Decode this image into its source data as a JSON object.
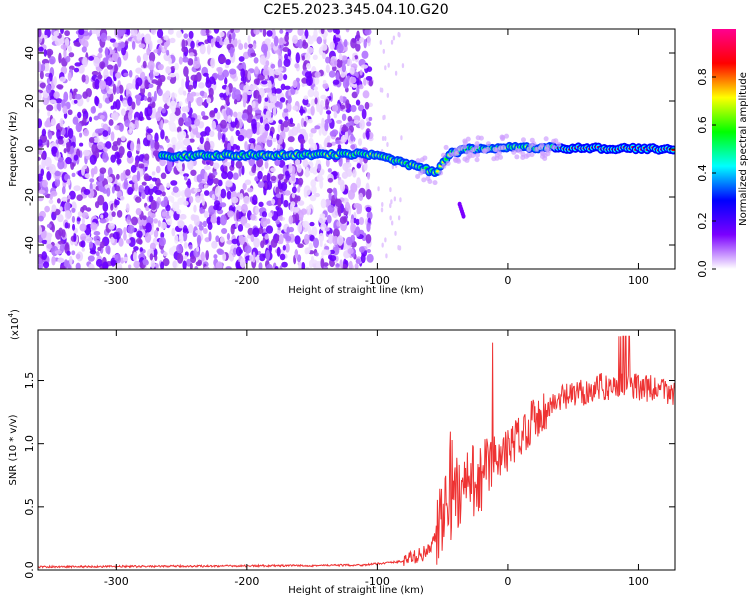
{
  "title": "C2E5.2023.345.04.10.G20",
  "chart_data": [
    {
      "type": "heatmap",
      "xlabel": "Height of straight line (km)",
      "ylabel": "Frequency (Hz)",
      "xlim": [
        -360,
        128
      ],
      "ylim": [
        -50,
        50
      ],
      "xticks": [
        -300,
        -200,
        -100,
        0,
        100
      ],
      "yticks": [
        -40,
        -20,
        0,
        20,
        40
      ],
      "colorbar": {
        "label": "Normalized spectral amplitude",
        "range": [
          0,
          1
        ],
        "ticks": [
          "0.0",
          "0.2",
          "0.4",
          "0.6",
          "0.8"
        ],
        "colors": [
          "#ffffff",
          "#7b00ff",
          "#0000ff",
          "#00ffff",
          "#00ff00",
          "#ffff00",
          "#ff0000",
          "#ff0090"
        ]
      },
      "ridge": [
        {
          "x": -265,
          "f": -3
        },
        {
          "x": -200,
          "f": -2.5
        },
        {
          "x": -150,
          "f": -2.5
        },
        {
          "x": -110,
          "f": -2
        },
        {
          "x": -95,
          "f": -3
        },
        {
          "x": -80,
          "f": -6
        },
        {
          "x": -65,
          "f": -8
        },
        {
          "x": -55,
          "f": -10
        },
        {
          "x": -45,
          "f": -2
        },
        {
          "x": -30,
          "f": 0
        },
        {
          "x": -10,
          "f": 0.5
        },
        {
          "x": 30,
          "f": 0.5
        },
        {
          "x": 128,
          "f": 0
        }
      ],
      "noise_region": [
        -360,
        -105
      ]
    },
    {
      "type": "line",
      "xlabel": "Height of straight line (km)",
      "ylabel": "SNR (10 * v/v)",
      "scale_label": "(x10",
      "scale_exp": "4",
      "scale_close": ")",
      "xlim": [
        -360,
        128
      ],
      "ylim": [
        0,
        19000
      ],
      "xticks": [
        -300,
        -200,
        -100,
        0,
        100
      ],
      "yticks": [
        0.0,
        0.5,
        1.0,
        1.5
      ],
      "ytick_labels": [
        "0.0",
        "0.5",
        "1.0",
        "1.5"
      ],
      "series": [
        {
          "color": "#ee3333",
          "envelope": [
            {
              "x": -360,
              "y": 250
            },
            {
              "x": -250,
              "y": 300
            },
            {
              "x": -150,
              "y": 350
            },
            {
              "x": -110,
              "y": 400
            },
            {
              "x": -80,
              "y": 700
            },
            {
              "x": -60,
              "y": 1500
            },
            {
              "x": -50,
              "y": 4000
            },
            {
              "x": -40,
              "y": 6000
            },
            {
              "x": -20,
              "y": 7500
            },
            {
              "x": 0,
              "y": 9500
            },
            {
              "x": 20,
              "y": 12000
            },
            {
              "x": 40,
              "y": 13500
            },
            {
              "x": 70,
              "y": 14500
            },
            {
              "x": 100,
              "y": 14500
            },
            {
              "x": 128,
              "y": 14000
            }
          ]
        }
      ]
    }
  ]
}
